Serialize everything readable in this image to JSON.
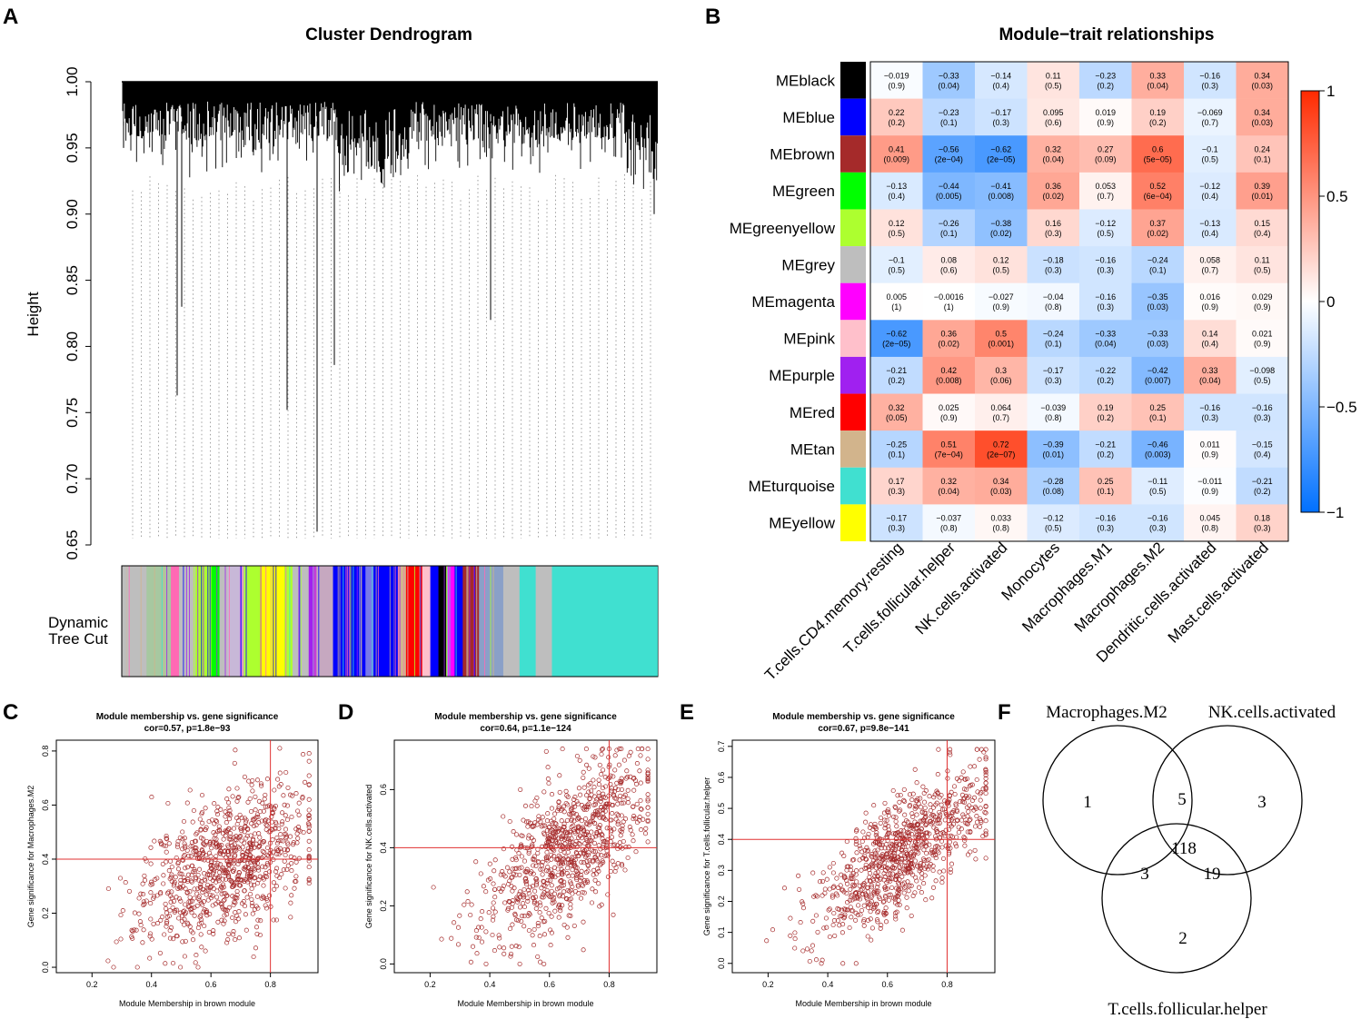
{
  "panels": {
    "a": "A",
    "b": "B",
    "c": "C",
    "d": "D",
    "e": "E",
    "f": "F"
  },
  "chart_data": [
    {
      "type": "dendrogram",
      "title": "Cluster Dendrogram",
      "ylabel": "Height",
      "yticks": [
        "1.00",
        "0.95",
        "0.90",
        "0.85",
        "0.80",
        "0.75",
        "0.70",
        "0.65"
      ],
      "ylim": [
        0.65,
        1.0
      ],
      "deep_leaves": [
        0.95,
        0.83,
        0.763,
        0.752,
        0.66,
        0.786,
        0.82,
        0.9
      ],
      "colorbar_label": [
        "Dynamic",
        "Tree Cut"
      ],
      "colorbar_segments": [
        {
          "color": "#bebebe",
          "w": 3
        },
        {
          "color": "#a7c8a0",
          "w": 3
        },
        {
          "color": "#ff69b4",
          "w": 1
        },
        {
          "color": "#bebebe",
          "w": 2
        },
        {
          "color": "#adff2f",
          "w": 2
        },
        {
          "color": "#00ff00",
          "w": 1
        },
        {
          "color": "#bebebe",
          "w": 1
        },
        {
          "color": "#c8b8d8",
          "w": 2
        },
        {
          "color": "#adff2f",
          "w": 2
        },
        {
          "color": "#ffff00",
          "w": 3
        },
        {
          "color": "#adff2f",
          "w": 1
        },
        {
          "color": "#bebebe",
          "w": 2
        },
        {
          "color": "#a020f0",
          "w": 1
        },
        {
          "color": "#c6a8c0",
          "w": 2
        },
        {
          "color": "#0000ff",
          "w": 4
        },
        {
          "color": "#7a7ae8",
          "w": 1
        },
        {
          "color": "#0000ff",
          "w": 3
        },
        {
          "color": "#d2b48c",
          "w": 1
        },
        {
          "color": "#ff0000",
          "w": 2
        },
        {
          "color": "#ffc0cb",
          "w": 1
        },
        {
          "color": "#0000ff",
          "w": 1
        },
        {
          "color": "#000000",
          "w": 1
        },
        {
          "color": "#ff00ff",
          "w": 1
        },
        {
          "color": "#0000ff",
          "w": 1
        },
        {
          "color": "#a52a2a",
          "w": 2
        },
        {
          "color": "#8aa0c8",
          "w": 3
        },
        {
          "color": "#bebebe",
          "w": 2
        },
        {
          "color": "#40e0d0",
          "w": 2
        },
        {
          "color": "#bebebe",
          "w": 2
        },
        {
          "color": "#40e0d0",
          "w": 13
        }
      ]
    },
    {
      "type": "heatmap",
      "title": "Module−trait relationships",
      "rows": [
        "MEblack",
        "MEblue",
        "MEbrown",
        "MEgreen",
        "MEgreenyellow",
        "MEgrey",
        "MEmagenta",
        "MEpink",
        "MEpurple",
        "MEred",
        "MEtan",
        "MEturquoise",
        "MEyellow"
      ],
      "row_colors": [
        "#000000",
        "#0000ff",
        "#a52a2a",
        "#00ff00",
        "#adff2f",
        "#bebebe",
        "#ff00ff",
        "#ffc0cb",
        "#a020f0",
        "#ff0000",
        "#d2b48c",
        "#40e0d0",
        "#ffff00"
      ],
      "columns": [
        "T.cells.CD4.memory.resting",
        "T.cells.follicular.helper",
        "NK.cells.activated",
        "Monocytes",
        "Macrophages.M1",
        "Macrophages.M2",
        "Dendritic.cells.activated",
        "Mast.cells.activated"
      ],
      "values": [
        [
          -0.019,
          -0.33,
          -0.14,
          0.11,
          -0.23,
          0.33,
          -0.16,
          0.34
        ],
        [
          0.22,
          -0.23,
          -0.17,
          0.095,
          0.019,
          0.19,
          -0.069,
          0.34
        ],
        [
          0.41,
          -0.56,
          -0.62,
          0.32,
          0.27,
          0.6,
          -0.1,
          0.24
        ],
        [
          -0.13,
          -0.44,
          -0.41,
          0.36,
          0.053,
          0.52,
          -0.12,
          0.39
        ],
        [
          0.12,
          -0.26,
          -0.38,
          0.16,
          -0.12,
          0.37,
          -0.13,
          0.15
        ],
        [
          -0.1,
          0.08,
          0.12,
          -0.18,
          -0.16,
          -0.24,
          0.058,
          0.11
        ],
        [
          0.005,
          -0.0016,
          -0.027,
          -0.04,
          -0.16,
          -0.35,
          0.016,
          0.029
        ],
        [
          -0.62,
          0.36,
          0.5,
          -0.24,
          -0.33,
          -0.33,
          0.14,
          0.021
        ],
        [
          -0.21,
          0.42,
          0.3,
          -0.17,
          -0.22,
          -0.42,
          0.33,
          -0.098
        ],
        [
          0.32,
          0.025,
          0.064,
          -0.039,
          0.19,
          0.25,
          -0.16,
          -0.16
        ],
        [
          -0.25,
          0.51,
          0.72,
          -0.39,
          -0.21,
          -0.46,
          0.011,
          -0.15
        ],
        [
          0.17,
          0.32,
          0.34,
          -0.28,
          0.25,
          -0.11,
          -0.011,
          -0.21
        ],
        [
          -0.17,
          -0.037,
          0.033,
          -0.12,
          -0.16,
          -0.16,
          0.045,
          0.18
        ]
      ],
      "labels": [
        [
          "−0.019",
          "−0.33",
          "−0.14",
          "0.11",
          "−0.23",
          "0.33",
          "−0.16",
          "0.34"
        ],
        [
          "0.22",
          "−0.23",
          "−0.17",
          "0.095",
          "0.019",
          "0.19",
          "−0.069",
          "0.34"
        ],
        [
          "0.41",
          "−0.56",
          "−0.62",
          "0.32",
          "0.27",
          "0.6",
          "−0.1",
          "0.24"
        ],
        [
          "−0.13",
          "−0.44",
          "−0.41",
          "0.36",
          "0.053",
          "0.52",
          "−0.12",
          "0.39"
        ],
        [
          "0.12",
          "−0.26",
          "−0.38",
          "0.16",
          "−0.12",
          "0.37",
          "−0.13",
          "0.15"
        ],
        [
          "−0.1",
          "0.08",
          "0.12",
          "−0.18",
          "−0.16",
          "−0.24",
          "0.058",
          "0.11"
        ],
        [
          "0.005",
          "−0.0016",
          "−0.027",
          "−0.04",
          "−0.16",
          "−0.35",
          "0.016",
          "0.029"
        ],
        [
          "−0.62",
          "0.36",
          "0.5",
          "−0.24",
          "−0.33",
          "−0.33",
          "0.14",
          "0.021"
        ],
        [
          "−0.21",
          "0.42",
          "0.3",
          "−0.17",
          "−0.22",
          "−0.42",
          "0.33",
          "−0.098"
        ],
        [
          "0.32",
          "0.025",
          "0.064",
          "−0.039",
          "0.19",
          "0.25",
          "−0.16",
          "−0.16"
        ],
        [
          "−0.25",
          "0.51",
          "0.72",
          "−0.39",
          "−0.21",
          "−0.46",
          "0.011",
          "−0.15"
        ],
        [
          "0.17",
          "0.32",
          "0.34",
          "−0.28",
          "0.25",
          "−0.11",
          "−0.011",
          "−0.21"
        ],
        [
          "−0.17",
          "−0.037",
          "0.033",
          "−0.12",
          "−0.16",
          "−0.16",
          "0.045",
          "0.18"
        ]
      ],
      "pvalues": [
        [
          "(0.9)",
          "(0.04)",
          "(0.4)",
          "(0.5)",
          "(0.2)",
          "(0.04)",
          "(0.3)",
          "(0.03)"
        ],
        [
          "(0.2)",
          "(0.1)",
          "(0.3)",
          "(0.6)",
          "(0.9)",
          "(0.2)",
          "(0.7)",
          "(0.03)"
        ],
        [
          "(0.009)",
          "(2e−04)",
          "(2e−05)",
          "(0.04)",
          "(0.09)",
          "(5e−05)",
          "(0.5)",
          "(0.1)"
        ],
        [
          "(0.4)",
          "(0.005)",
          "(0.008)",
          "(0.02)",
          "(0.7)",
          "(6e−04)",
          "(0.4)",
          "(0.01)"
        ],
        [
          "(0.5)",
          "(0.1)",
          "(0.02)",
          "(0.3)",
          "(0.5)",
          "(0.02)",
          "(0.4)",
          "(0.4)"
        ],
        [
          "(0.5)",
          "(0.6)",
          "(0.5)",
          "(0.3)",
          "(0.3)",
          "(0.1)",
          "(0.7)",
          "(0.5)"
        ],
        [
          "(1)",
          "(1)",
          "(0.9)",
          "(0.8)",
          "(0.3)",
          "(0.03)",
          "(0.9)",
          "(0.9)"
        ],
        [
          "(2e−05)",
          "(0.02)",
          "(0.001)",
          "(0.1)",
          "(0.04)",
          "(0.03)",
          "(0.4)",
          "(0.9)"
        ],
        [
          "(0.2)",
          "(0.008)",
          "(0.06)",
          "(0.3)",
          "(0.2)",
          "(0.007)",
          "(0.04)",
          "(0.5)"
        ],
        [
          "(0.05)",
          "(0.9)",
          "(0.7)",
          "(0.8)",
          "(0.2)",
          "(0.1)",
          "(0.3)",
          "(0.3)"
        ],
        [
          "(0.1)",
          "(7e−04)",
          "(2e−07)",
          "(0.01)",
          "(0.2)",
          "(0.003)",
          "(0.9)",
          "(0.4)"
        ],
        [
          "(0.3)",
          "(0.04)",
          "(0.03)",
          "(0.08)",
          "(0.1)",
          "(0.5)",
          "(0.9)",
          "(0.2)"
        ],
        [
          "(0.3)",
          "(0.8)",
          "(0.8)",
          "(0.5)",
          "(0.3)",
          "(0.3)",
          "(0.8)",
          "(0.3)"
        ]
      ],
      "legend_ticks": [
        "1",
        "0.5",
        "0",
        "−0.5",
        "−1"
      ],
      "legend_values": [
        1,
        0.5,
        0,
        -0.5,
        -1
      ],
      "range": [
        -1,
        1
      ]
    },
    {
      "type": "scatter",
      "title": "Module membership vs. gene significance",
      "subtitle": "cor=0.57, p=1.8e−93",
      "xlabel": "Module Membership in brown module",
      "ylabel": "Gene significance for  Macrophages.M2",
      "xlim": [
        0.08,
        0.96
      ],
      "ylim": [
        -0.02,
        0.84
      ],
      "xticks": [
        0.2,
        0.4,
        0.6,
        0.8
      ],
      "xtick_labels": [
        "0.2",
        "0.4",
        "0.6",
        "0.8"
      ],
      "yticks": [
        0.0,
        0.2,
        0.4,
        0.6,
        0.8
      ],
      "ytick_labels": [
        "0.0",
        "0.2",
        "0.4",
        "0.6",
        "0.8"
      ],
      "refline_x": 0.8,
      "refline_y": 0.4,
      "n_points": 900,
      "cor": 0.57,
      "seed": 11,
      "slope": 0.53,
      "intercept": 0.04,
      "noise": 0.13
    },
    {
      "type": "scatter",
      "title": "Module membership vs. gene significance",
      "subtitle": "cor=0.64, p=1.1e−124",
      "xlabel": "Module Membership in brown module",
      "ylabel": "Gene significance for  NK.cells.activated",
      "xlim": [
        0.08,
        0.96
      ],
      "ylim": [
        -0.03,
        0.77
      ],
      "xticks": [
        0.2,
        0.4,
        0.6,
        0.8
      ],
      "xtick_labels": [
        "0.2",
        "0.4",
        "0.6",
        "0.8"
      ],
      "yticks": [
        0.0,
        0.2,
        0.4,
        0.6
      ],
      "ytick_labels": [
        "0.0",
        "0.2",
        "0.4",
        "0.6"
      ],
      "refline_x": 0.8,
      "refline_y": 0.4,
      "n_points": 900,
      "cor": 0.64,
      "seed": 23,
      "slope": 0.7,
      "intercept": -0.07,
      "noise": 0.12
    },
    {
      "type": "scatter",
      "title": "Module membership vs. gene significance",
      "subtitle": "cor=0.67, p=9.8e−141",
      "xlabel": "Module Membership in brown module",
      "ylabel": "Gene significance for  T.cells.follicular.helper",
      "xlim": [
        0.08,
        0.96
      ],
      "ylim": [
        -0.03,
        0.72
      ],
      "xticks": [
        0.2,
        0.4,
        0.6,
        0.8
      ],
      "xtick_labels": [
        "0.2",
        "0.4",
        "0.6",
        "0.8"
      ],
      "yticks": [
        0.0,
        0.1,
        0.2,
        0.3,
        0.4,
        0.5,
        0.6,
        0.7
      ],
      "ytick_labels": [
        "0.0",
        "0.1",
        "0.2",
        "0.3",
        "0.4",
        "0.5",
        "0.6",
        "0.7"
      ],
      "refline_x": 0.8,
      "refline_y": 0.4,
      "n_points": 900,
      "cor": 0.67,
      "seed": 37,
      "slope": 0.66,
      "intercept": -0.07,
      "noise": 0.09
    },
    {
      "type": "venn",
      "sets": [
        "Macrophages.M2",
        "NK.cells.activated",
        "T.cells.follicular.helper"
      ],
      "regions": {
        "only_a": "1",
        "only_b": "3",
        "only_c": "2",
        "ab": "5",
        "ac": "3",
        "bc": "19",
        "abc": "118"
      }
    }
  ]
}
